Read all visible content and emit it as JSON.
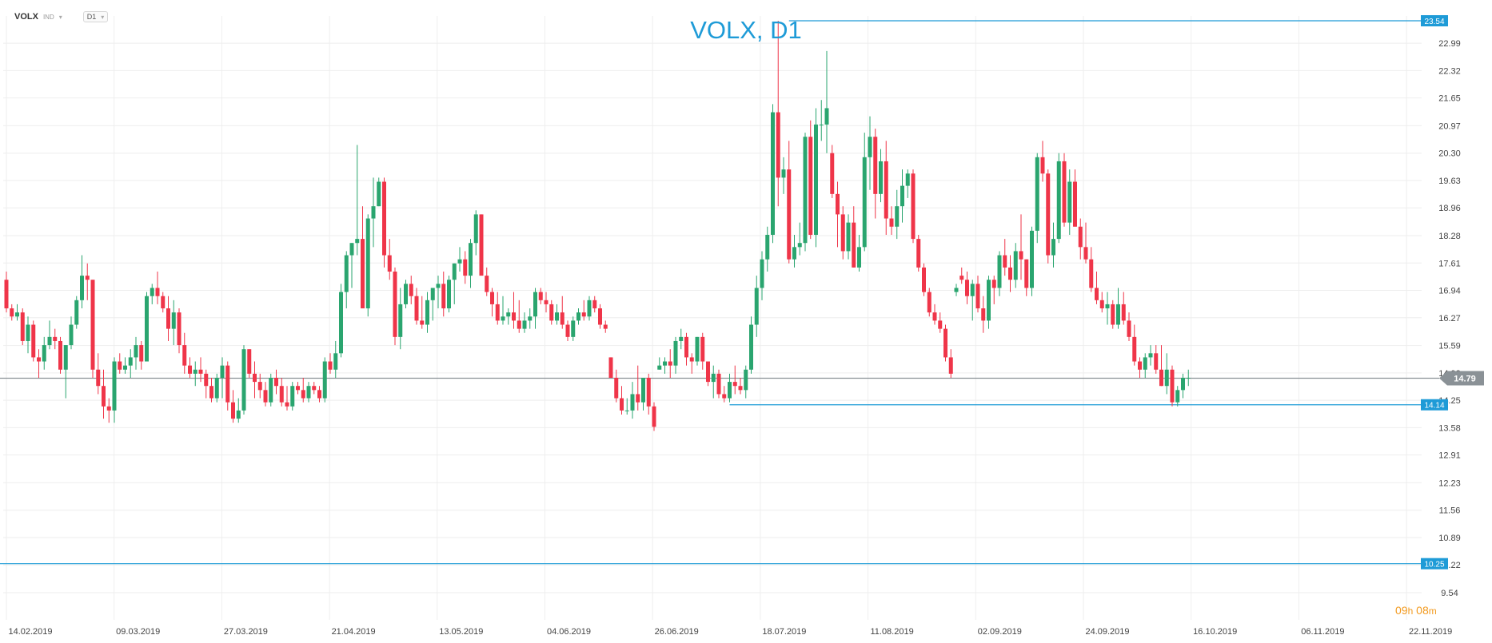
{
  "toolbar": {
    "symbol": "VOLX",
    "symbol_type": "IND",
    "timeframe": "D1"
  },
  "countdown": {
    "hours": "09",
    "hours_unit": "h",
    "minutes": "08",
    "minutes_unit": "m"
  },
  "colors": {
    "up": "#2aa56f",
    "down": "#ef3549",
    "line": "#1e9bd7",
    "last_price_bg": "#8a9196",
    "grid": "#eeeeee",
    "text": "#444444"
  },
  "chart_data": {
    "type": "candlestick",
    "title": "VOLX, D1",
    "y_ticks": [
      "22.99",
      "22.32",
      "21.65",
      "20.97",
      "20.30",
      "19.63",
      "18.96",
      "18.28",
      "17.61",
      "16.94",
      "16.27",
      "15.59",
      "14.92",
      "14.25",
      "13.58",
      "12.91",
      "12.23",
      "11.56",
      "10.89",
      "10.22",
      "9.54"
    ],
    "x_labels": [
      "14.02.2019",
      "09.03.2019",
      "27.03.2019",
      "21.04.2019",
      "13.05.2019",
      "04.06.2019",
      "26.06.2019",
      "18.07.2019",
      "11.08.2019",
      "02.09.2019",
      "24.09.2019",
      "16.10.2019",
      "06.11.2019",
      "22.11.2019"
    ],
    "ylim": [
      9.54,
      23.54
    ],
    "last_price": {
      "value": 14.79,
      "label": "14.79"
    },
    "levels": [
      {
        "value": 23.54,
        "label": "23.54",
        "start_bar": 145
      },
      {
        "value": 14.14,
        "label": "14.14",
        "start_bar": 134
      },
      {
        "value": 10.25,
        "label": "10.25",
        "start_bar": 0
      }
    ],
    "ohlc": [
      [
        17.2,
        17.4,
        16.4,
        16.5
      ],
      [
        16.5,
        16.6,
        16.2,
        16.3
      ],
      [
        16.3,
        16.6,
        16.2,
        16.4
      ],
      [
        16.4,
        16.5,
        15.6,
        15.7
      ],
      [
        15.7,
        16.3,
        15.4,
        16.1
      ],
      [
        16.1,
        16.2,
        15.2,
        15.3
      ],
      [
        15.3,
        15.5,
        14.8,
        15.2
      ],
      [
        15.2,
        15.8,
        15.0,
        15.6
      ],
      [
        15.6,
        16.2,
        15.5,
        15.8
      ],
      [
        15.8,
        16.0,
        15.5,
        15.7
      ],
      [
        15.7,
        15.8,
        14.9,
        15.0
      ],
      [
        15.0,
        15.6,
        14.3,
        15.6
      ],
      [
        15.6,
        16.3,
        15.5,
        16.1
      ],
      [
        16.1,
        16.8,
        16.0,
        16.7
      ],
      [
        16.7,
        17.8,
        16.5,
        17.3
      ],
      [
        17.3,
        17.6,
        16.7,
        17.2
      ],
      [
        17.2,
        17.2,
        14.8,
        15.0
      ],
      [
        15.0,
        15.4,
        14.4,
        14.6
      ],
      [
        14.6,
        15.0,
        13.8,
        14.1
      ],
      [
        14.1,
        14.3,
        13.7,
        14.0
      ],
      [
        14.0,
        15.3,
        13.7,
        15.2
      ],
      [
        15.2,
        15.4,
        14.9,
        15.0
      ],
      [
        15.0,
        15.3,
        14.9,
        15.1
      ],
      [
        15.1,
        15.5,
        14.8,
        15.3
      ],
      [
        15.3,
        15.8,
        15.0,
        15.6
      ],
      [
        15.6,
        15.7,
        15.0,
        15.2
      ],
      [
        15.2,
        16.9,
        15.2,
        16.8
      ],
      [
        16.8,
        17.1,
        16.6,
        17.0
      ],
      [
        17.0,
        17.4,
        16.6,
        16.8
      ],
      [
        16.8,
        16.9,
        16.4,
        16.5
      ],
      [
        16.5,
        16.8,
        15.7,
        16.0
      ],
      [
        16.0,
        16.7,
        15.6,
        16.4
      ],
      [
        16.4,
        16.5,
        15.4,
        15.6
      ],
      [
        15.6,
        15.9,
        14.9,
        15.1
      ],
      [
        15.1,
        15.3,
        14.8,
        14.9
      ],
      [
        14.9,
        15.2,
        14.6,
        15.0
      ],
      [
        15.0,
        15.3,
        14.7,
        14.9
      ],
      [
        14.9,
        15.0,
        14.3,
        14.6
      ],
      [
        14.6,
        14.8,
        14.2,
        14.3
      ],
      [
        14.3,
        14.9,
        14.2,
        14.8
      ],
      [
        14.8,
        15.3,
        14.3,
        15.1
      ],
      [
        15.1,
        15.2,
        14.0,
        14.2
      ],
      [
        14.2,
        14.5,
        13.7,
        13.8
      ],
      [
        13.8,
        14.3,
        13.7,
        14.0
      ],
      [
        14.0,
        15.6,
        13.9,
        15.5
      ],
      [
        15.5,
        15.5,
        14.8,
        14.9
      ],
      [
        14.9,
        15.2,
        14.3,
        14.7
      ],
      [
        14.7,
        14.9,
        14.3,
        14.5
      ],
      [
        14.5,
        14.7,
        14.1,
        14.2
      ],
      [
        14.2,
        14.9,
        14.1,
        14.8
      ],
      [
        14.8,
        15.0,
        14.4,
        14.6
      ],
      [
        14.6,
        14.8,
        14.1,
        14.2
      ],
      [
        14.2,
        14.6,
        14.0,
        14.1
      ],
      [
        14.1,
        14.7,
        14.0,
        14.6
      ],
      [
        14.6,
        14.7,
        14.4,
        14.5
      ],
      [
        14.5,
        14.8,
        14.2,
        14.3
      ],
      [
        14.3,
        14.7,
        14.2,
        14.6
      ],
      [
        14.6,
        14.7,
        14.4,
        14.5
      ],
      [
        14.5,
        14.6,
        14.2,
        14.3
      ],
      [
        14.3,
        15.3,
        14.2,
        15.2
      ],
      [
        15.2,
        15.4,
        14.9,
        15.0
      ],
      [
        15.0,
        15.7,
        14.8,
        15.4
      ],
      [
        15.4,
        17.1,
        15.3,
        16.9
      ],
      [
        16.9,
        17.9,
        16.5,
        17.8
      ],
      [
        17.8,
        18.1,
        17.0,
        18.1
      ],
      [
        18.1,
        20.5,
        17.8,
        18.2
      ],
      [
        18.2,
        19.0,
        16.5,
        16.5
      ],
      [
        16.5,
        18.8,
        16.3,
        18.7
      ],
      [
        18.7,
        19.7,
        18.0,
        19.0
      ],
      [
        19.0,
        19.7,
        19.0,
        19.6
      ],
      [
        19.6,
        19.7,
        17.5,
        17.8
      ],
      [
        17.8,
        18.2,
        17.2,
        17.4
      ],
      [
        17.4,
        17.5,
        15.6,
        15.8
      ],
      [
        15.8,
        17.0,
        15.5,
        16.6
      ],
      [
        16.6,
        17.2,
        16.5,
        17.1
      ],
      [
        17.1,
        17.3,
        16.6,
        16.8
      ],
      [
        16.8,
        17.0,
        16.1,
        16.2
      ],
      [
        16.2,
        16.8,
        16.0,
        16.1
      ],
      [
        16.1,
        16.9,
        15.9,
        16.7
      ],
      [
        16.7,
        17.0,
        16.2,
        17.0
      ],
      [
        17.0,
        17.3,
        16.5,
        17.1
      ],
      [
        17.1,
        17.4,
        16.3,
        16.5
      ],
      [
        16.5,
        17.3,
        16.4,
        17.2
      ],
      [
        17.2,
        17.6,
        16.6,
        17.6
      ],
      [
        17.6,
        18.0,
        17.4,
        17.7
      ],
      [
        17.7,
        17.9,
        17.1,
        17.3
      ],
      [
        17.3,
        18.2,
        17.0,
        18.1
      ],
      [
        18.1,
        18.9,
        17.8,
        18.8
      ],
      [
        18.8,
        18.8,
        17.4,
        17.3
      ],
      [
        17.3,
        17.5,
        16.8,
        16.9
      ],
      [
        16.9,
        17.0,
        16.3,
        16.6
      ],
      [
        16.6,
        16.9,
        16.1,
        16.2
      ],
      [
        16.2,
        16.8,
        16.1,
        16.3
      ],
      [
        16.3,
        16.5,
        16.1,
        16.4
      ],
      [
        16.4,
        16.9,
        16.0,
        16.2
      ],
      [
        16.2,
        16.7,
        15.9,
        16.0
      ],
      [
        16.0,
        16.4,
        15.9,
        16.2
      ],
      [
        16.2,
        16.5,
        16.0,
        16.3
      ],
      [
        16.3,
        17.0,
        16.0,
        16.9
      ],
      [
        16.9,
        17.0,
        16.6,
        16.7
      ],
      [
        16.7,
        16.9,
        16.4,
        16.6
      ],
      [
        16.6,
        16.7,
        16.1,
        16.2
      ],
      [
        16.2,
        16.6,
        16.1,
        16.4
      ],
      [
        16.4,
        16.8,
        16.0,
        16.1
      ],
      [
        16.1,
        16.2,
        15.7,
        15.8
      ],
      [
        15.8,
        16.3,
        15.7,
        16.2
      ],
      [
        16.2,
        16.5,
        16.1,
        16.4
      ],
      [
        16.4,
        16.7,
        16.2,
        16.3
      ],
      [
        16.3,
        16.8,
        16.2,
        16.7
      ],
      [
        16.7,
        16.8,
        16.4,
        16.5
      ],
      [
        16.5,
        16.6,
        16.0,
        16.1
      ],
      [
        16.1,
        16.2,
        15.9,
        16.0
      ],
      [
        15.3,
        15.3,
        14.8,
        14.8
      ],
      [
        14.8,
        15.0,
        14.2,
        14.3
      ],
      [
        14.3,
        14.6,
        13.9,
        14.0
      ],
      [
        14.0,
        14.3,
        13.9,
        14.0
      ],
      [
        14.0,
        14.7,
        13.8,
        14.4
      ],
      [
        14.4,
        15.1,
        14.0,
        14.2
      ],
      [
        14.2,
        14.8,
        14.0,
        14.8
      ],
      [
        14.8,
        14.9,
        13.9,
        14.1
      ],
      [
        14.1,
        14.2,
        13.5,
        13.6
      ],
      [
        15.0,
        15.3,
        15.0,
        15.1
      ],
      [
        15.1,
        15.3,
        14.9,
        15.2
      ],
      [
        15.2,
        15.5,
        14.8,
        15.1
      ],
      [
        15.1,
        15.8,
        14.9,
        15.7
      ],
      [
        15.7,
        16.0,
        15.5,
        15.8
      ],
      [
        15.8,
        15.9,
        15.1,
        15.3
      ],
      [
        15.3,
        15.4,
        14.9,
        15.2
      ],
      [
        15.2,
        15.8,
        15.1,
        15.8
      ],
      [
        15.8,
        15.9,
        15.0,
        15.2
      ],
      [
        15.2,
        15.2,
        14.6,
        14.7
      ],
      [
        14.7,
        15.1,
        14.3,
        14.9
      ],
      [
        14.9,
        15.0,
        14.3,
        14.4
      ],
      [
        14.4,
        14.6,
        14.2,
        14.3
      ],
      [
        14.3,
        14.9,
        14.2,
        14.7
      ],
      [
        14.7,
        15.1,
        14.4,
        14.6
      ],
      [
        14.6,
        14.8,
        14.4,
        14.5
      ],
      [
        14.5,
        15.1,
        14.3,
        15.0
      ],
      [
        15.0,
        16.3,
        14.9,
        16.1
      ],
      [
        16.1,
        17.3,
        15.8,
        17.0
      ],
      [
        17.0,
        17.9,
        16.7,
        17.7
      ],
      [
        17.7,
        18.5,
        17.4,
        18.3
      ],
      [
        18.3,
        21.5,
        18.1,
        21.3
      ],
      [
        21.3,
        23.54,
        19.0,
        19.7
      ],
      [
        19.7,
        20.2,
        19.3,
        19.9
      ],
      [
        19.9,
        20.6,
        17.6,
        17.7
      ],
      [
        17.7,
        18.3,
        17.5,
        18.0
      ],
      [
        18.0,
        18.6,
        17.8,
        18.1
      ],
      [
        18.1,
        20.8,
        17.9,
        20.7
      ],
      [
        20.7,
        21.1,
        18.2,
        18.3
      ],
      [
        18.3,
        21.4,
        18.0,
        21.0
      ],
      [
        21.0,
        21.6,
        20.6,
        21.0
      ],
      [
        21.0,
        22.8,
        20.3,
        21.4
      ],
      [
        20.3,
        20.5,
        19.2,
        19.3
      ],
      [
        19.3,
        19.6,
        18.0,
        18.8
      ],
      [
        18.8,
        19.0,
        17.7,
        17.9
      ],
      [
        17.9,
        18.8,
        17.7,
        18.6
      ],
      [
        18.6,
        19.0,
        17.5,
        17.5
      ],
      [
        17.5,
        18.3,
        17.4,
        18.0
      ],
      [
        18.0,
        20.8,
        17.9,
        20.2
      ],
      [
        20.2,
        21.2,
        19.4,
        20.7
      ],
      [
        20.7,
        20.9,
        18.7,
        19.3
      ],
      [
        19.3,
        20.4,
        19.1,
        20.1
      ],
      [
        20.1,
        20.6,
        18.3,
        18.7
      ],
      [
        18.7,
        19.0,
        18.3,
        18.5
      ],
      [
        18.5,
        19.4,
        18.2,
        19.0
      ],
      [
        19.0,
        19.9,
        18.6,
        19.5
      ],
      [
        19.5,
        19.9,
        19.2,
        19.8
      ],
      [
        19.8,
        19.9,
        18.1,
        18.2
      ],
      [
        18.2,
        18.3,
        17.4,
        17.5
      ],
      [
        17.5,
        17.6,
        16.8,
        16.9
      ],
      [
        16.9,
        17.0,
        16.3,
        16.4
      ],
      [
        16.4,
        16.6,
        16.1,
        16.2
      ],
      [
        16.2,
        16.4,
        15.9,
        16.0
      ],
      [
        16.0,
        16.1,
        15.2,
        15.3
      ],
      [
        15.3,
        15.5,
        14.8,
        14.9
      ],
      [
        16.9,
        17.1,
        16.8,
        17.0
      ],
      [
        17.3,
        17.5,
        17.1,
        17.2
      ],
      [
        17.2,
        17.4,
        16.6,
        16.8
      ],
      [
        16.8,
        17.2,
        16.2,
        17.1
      ],
      [
        17.1,
        17.3,
        16.4,
        16.5
      ],
      [
        16.5,
        16.8,
        15.9,
        16.2
      ],
      [
        16.2,
        17.3,
        16.0,
        17.2
      ],
      [
        17.2,
        17.3,
        16.6,
        17.0
      ],
      [
        17.0,
        17.9,
        16.8,
        17.8
      ],
      [
        17.8,
        18.2,
        17.3,
        17.5
      ],
      [
        17.5,
        17.8,
        16.9,
        17.2
      ],
      [
        17.2,
        18.1,
        17.0,
        17.9
      ],
      [
        17.9,
        18.8,
        17.2,
        17.7
      ],
      [
        17.7,
        17.7,
        16.8,
        17.0
      ],
      [
        17.0,
        18.5,
        16.8,
        18.4
      ],
      [
        18.4,
        20.3,
        18.1,
        20.2
      ],
      [
        20.2,
        20.6,
        19.6,
        19.8
      ],
      [
        19.8,
        19.9,
        17.6,
        17.8
      ],
      [
        17.8,
        18.6,
        17.5,
        18.2
      ],
      [
        18.2,
        20.3,
        18.1,
        20.1
      ],
      [
        20.1,
        20.3,
        18.5,
        18.6
      ],
      [
        18.6,
        19.9,
        18.3,
        19.6
      ],
      [
        19.6,
        19.9,
        18.5,
        18.5
      ],
      [
        18.5,
        18.7,
        17.7,
        18.0
      ],
      [
        18.0,
        18.6,
        17.6,
        17.7
      ],
      [
        17.7,
        18.0,
        16.9,
        17.0
      ],
      [
        17.0,
        17.4,
        16.6,
        16.7
      ],
      [
        16.7,
        16.9,
        16.4,
        16.5
      ],
      [
        16.5,
        16.9,
        16.1,
        16.6
      ],
      [
        16.6,
        16.7,
        16.0,
        16.1
      ],
      [
        16.1,
        17.0,
        16.0,
        16.6
      ],
      [
        16.6,
        16.9,
        16.1,
        16.2
      ],
      [
        16.2,
        16.4,
        15.7,
        15.8
      ],
      [
        15.8,
        16.1,
        15.1,
        15.2
      ],
      [
        15.2,
        15.3,
        14.8,
        15.0
      ],
      [
        15.0,
        15.4,
        14.8,
        15.3
      ],
      [
        15.3,
        15.6,
        15.1,
        15.4
      ],
      [
        15.4,
        15.6,
        14.9,
        15.0
      ],
      [
        15.0,
        15.6,
        14.6,
        14.6
      ],
      [
        14.6,
        15.4,
        14.4,
        15.0
      ],
      [
        15.0,
        15.1,
        14.1,
        14.2
      ],
      [
        14.2,
        14.6,
        14.1,
        14.5
      ],
      [
        14.5,
        14.9,
        14.3,
        14.8
      ],
      [
        14.8,
        15.0,
        14.6,
        14.8
      ]
    ]
  }
}
